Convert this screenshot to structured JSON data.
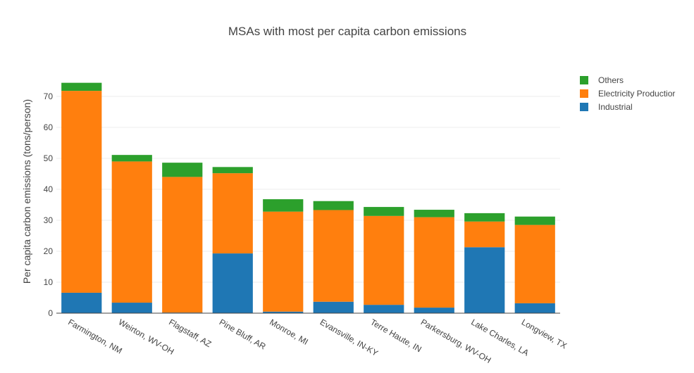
{
  "chart_data": {
    "type": "bar",
    "barmode": "stack",
    "title": "MSAs with most per capita carbon emissions",
    "xlabel": "",
    "ylabel": "Per capita carbon emissions (tons/person)",
    "ylim": [
      0,
      75
    ],
    "yticks": [
      0,
      10,
      20,
      30,
      40,
      50,
      60,
      70
    ],
    "grid": true,
    "legend_position": "top-right",
    "categories": [
      "Farmington, NM",
      "Weirton, WV-OH",
      "Flagstaff, AZ",
      "Pine Bluff, AR",
      "Monroe, MI",
      "Evansville, IN-KY",
      "Terre Haute, IN",
      "Parkersburg, WV-OH",
      "Lake Charles, LA",
      "Longview, TX"
    ],
    "series": [
      {
        "name": "Industrial",
        "color": "#1f77b4",
        "values": [
          6.6,
          3.4,
          0.2,
          19.3,
          0.5,
          3.7,
          2.7,
          1.8,
          21.3,
          3.2
        ]
      },
      {
        "name": "Electricity Productior",
        "color": "#ff7f0e",
        "values": [
          65.2,
          45.6,
          43.8,
          25.9,
          32.3,
          29.6,
          28.7,
          29.2,
          8.3,
          25.3
        ]
      },
      {
        "name": "Others",
        "color": "#2ca02c",
        "values": [
          2.6,
          2.1,
          4.6,
          2.0,
          4.0,
          2.9,
          2.9,
          2.4,
          2.7,
          2.7
        ]
      }
    ],
    "legend_order": [
      "Others",
      "Electricity Productior",
      "Industrial"
    ]
  }
}
